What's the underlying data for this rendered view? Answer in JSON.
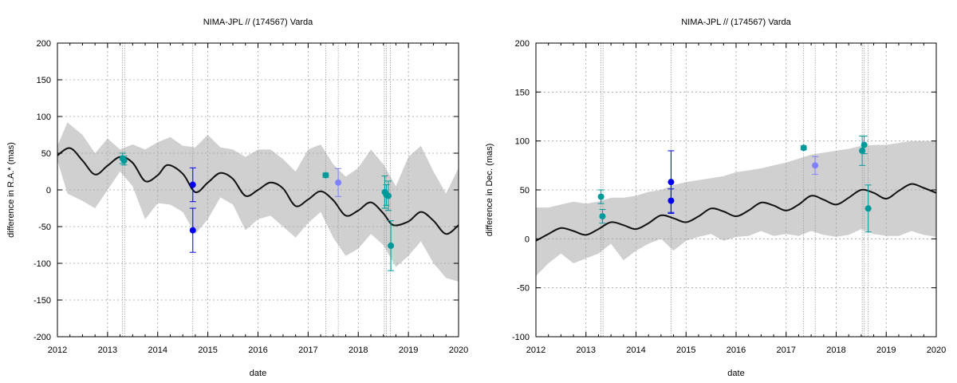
{
  "chart_data": [
    {
      "type": "scatter",
      "title": "NIMA-JPL // (174567) Varda",
      "xlabel": "date",
      "ylabel": "difference in R.A.* (mas)",
      "xlim": [
        2012,
        2020
      ],
      "ylim": [
        -200,
        200
      ],
      "x_ticks": [
        "2012",
        "2013",
        "2014",
        "2015",
        "2016",
        "2017",
        "2018",
        "2019",
        "2020"
      ],
      "y_ticks": [
        "-200",
        "-150",
        "-100",
        "-50",
        "0",
        "50",
        "100",
        "150",
        "200"
      ],
      "grid": true,
      "model_curve": [
        [
          2012.0,
          47
        ],
        [
          2012.25,
          57
        ],
        [
          2012.5,
          40
        ],
        [
          2012.75,
          21
        ],
        [
          2013.0,
          33
        ],
        [
          2013.25,
          45
        ],
        [
          2013.5,
          37
        ],
        [
          2013.75,
          12
        ],
        [
          2014.0,
          20
        ],
        [
          2014.2,
          34
        ],
        [
          2014.5,
          22
        ],
        [
          2014.75,
          -3
        ],
        [
          2015.0,
          10
        ],
        [
          2015.25,
          23
        ],
        [
          2015.5,
          15
        ],
        [
          2015.75,
          -8
        ],
        [
          2016.0,
          0
        ],
        [
          2016.25,
          10
        ],
        [
          2016.5,
          2
        ],
        [
          2016.75,
          -22
        ],
        [
          2017.0,
          -13
        ],
        [
          2017.25,
          -2
        ],
        [
          2017.5,
          -14
        ],
        [
          2017.75,
          -35
        ],
        [
          2018.0,
          -28
        ],
        [
          2018.25,
          -17
        ],
        [
          2018.5,
          -32
        ],
        [
          2018.7,
          -48
        ],
        [
          2019.0,
          -43
        ],
        [
          2019.25,
          -30
        ],
        [
          2019.5,
          -42
        ],
        [
          2019.75,
          -60
        ],
        [
          2020.0,
          -48
        ]
      ],
      "uncertainty_band": [
        [
          2012.0,
          40,
          60
        ],
        [
          2012.2,
          -5,
          92
        ],
        [
          2012.5,
          -15,
          75
        ],
        [
          2012.75,
          -25,
          50
        ],
        [
          2013.0,
          0,
          70
        ],
        [
          2013.25,
          25,
          55
        ],
        [
          2013.5,
          5,
          62
        ],
        [
          2013.75,
          -40,
          55
        ],
        [
          2014.0,
          -18,
          65
        ],
        [
          2014.25,
          -20,
          72
        ],
        [
          2014.5,
          -30,
          60
        ],
        [
          2014.75,
          -60,
          58
        ],
        [
          2015.0,
          -40,
          75
        ],
        [
          2015.25,
          -10,
          58
        ],
        [
          2015.5,
          -20,
          55
        ],
        [
          2015.75,
          -55,
          45
        ],
        [
          2016.0,
          -40,
          55
        ],
        [
          2016.25,
          -35,
          55
        ],
        [
          2016.5,
          -50,
          42
        ],
        [
          2016.75,
          -65,
          25
        ],
        [
          2017.0,
          -45,
          55
        ],
        [
          2017.25,
          -30,
          62
        ],
        [
          2017.5,
          -65,
          35
        ],
        [
          2017.75,
          -90,
          18
        ],
        [
          2018.0,
          -80,
          30
        ],
        [
          2018.25,
          -60,
          55
        ],
        [
          2018.5,
          -75,
          35
        ],
        [
          2018.75,
          -105,
          5
        ],
        [
          2019.0,
          -90,
          45
        ],
        [
          2019.25,
          -70,
          60
        ],
        [
          2019.5,
          -100,
          25
        ],
        [
          2019.75,
          -120,
          -5
        ],
        [
          2020.0,
          -125,
          30
        ]
      ],
      "series": [
        {
          "color": "#009999",
          "points": [
            {
              "x": 2013.3,
              "y": 43,
              "err": 7
            },
            {
              "x": 2013.33,
              "y": 40,
              "err": 6
            },
            {
              "x": 2017.35,
              "y": 20,
              "err": 3
            },
            {
              "x": 2018.53,
              "y": -3,
              "err": 22
            },
            {
              "x": 2018.56,
              "y": -7,
              "err": 14
            },
            {
              "x": 2018.6,
              "y": -8,
              "err": 20
            },
            {
              "x": 2018.65,
              "y": -76,
              "err": 34
            }
          ]
        },
        {
          "color": "#0000ee",
          "points": [
            {
              "x": 2014.7,
              "y": 7,
              "err": 23
            },
            {
              "x": 2014.7,
              "y": -55,
              "err": 30
            }
          ]
        },
        {
          "color": "#8080ff",
          "points": [
            {
              "x": 2017.6,
              "y": 10,
              "err": 19
            }
          ]
        }
      ],
      "vlines": [
        2013.3,
        2013.34,
        2014.7,
        2017.35,
        2017.6,
        2018.52,
        2018.56,
        2018.64
      ]
    },
    {
      "type": "scatter",
      "title": "NIMA-JPL // (174567) Varda",
      "xlabel": "date",
      "ylabel": "difference in Dec. (mas)",
      "xlim": [
        2012,
        2020
      ],
      "ylim": [
        -100,
        200
      ],
      "x_ticks": [
        "2012",
        "2013",
        "2014",
        "2015",
        "2016",
        "2017",
        "2018",
        "2019",
        "2020"
      ],
      "y_ticks": [
        "-100",
        "-50",
        "0",
        "50",
        "100",
        "150",
        "200"
      ],
      "grid": true,
      "model_curve": [
        [
          2012.0,
          -2
        ],
        [
          2012.25,
          5
        ],
        [
          2012.5,
          11
        ],
        [
          2012.75,
          8
        ],
        [
          2013.0,
          4
        ],
        [
          2013.25,
          10
        ],
        [
          2013.5,
          17
        ],
        [
          2013.75,
          14
        ],
        [
          2014.0,
          10
        ],
        [
          2014.25,
          16
        ],
        [
          2014.5,
          24
        ],
        [
          2014.75,
          21
        ],
        [
          2015.0,
          17
        ],
        [
          2015.25,
          23
        ],
        [
          2015.5,
          31
        ],
        [
          2015.75,
          28
        ],
        [
          2016.0,
          23
        ],
        [
          2016.25,
          29
        ],
        [
          2016.5,
          37
        ],
        [
          2016.75,
          34
        ],
        [
          2017.0,
          29
        ],
        [
          2017.25,
          35
        ],
        [
          2017.5,
          44
        ],
        [
          2017.75,
          40
        ],
        [
          2018.0,
          35
        ],
        [
          2018.25,
          42
        ],
        [
          2018.5,
          50
        ],
        [
          2018.75,
          47
        ],
        [
          2019.0,
          41
        ],
        [
          2019.25,
          49
        ],
        [
          2019.5,
          56
        ],
        [
          2019.75,
          52
        ],
        [
          2020.0,
          47
        ]
      ],
      "uncertainty_band": [
        [
          2012.0,
          -38,
          32
        ],
        [
          2012.25,
          -25,
          32
        ],
        [
          2012.5,
          -15,
          35
        ],
        [
          2012.75,
          -25,
          38
        ],
        [
          2013.0,
          -20,
          36
        ],
        [
          2013.25,
          -15,
          38
        ],
        [
          2013.5,
          -5,
          42
        ],
        [
          2013.75,
          -22,
          42
        ],
        [
          2014.0,
          -12,
          44
        ],
        [
          2014.25,
          -5,
          48
        ],
        [
          2014.5,
          0,
          50
        ],
        [
          2014.75,
          -12,
          55
        ],
        [
          2015.0,
          -2,
          58
        ],
        [
          2015.25,
          2,
          60
        ],
        [
          2015.5,
          5,
          62
        ],
        [
          2015.75,
          -2,
          64
        ],
        [
          2016.0,
          2,
          68
        ],
        [
          2016.25,
          3,
          70
        ],
        [
          2016.5,
          8,
          72
        ],
        [
          2016.75,
          3,
          75
        ],
        [
          2017.0,
          5,
          78
        ],
        [
          2017.25,
          3,
          82
        ],
        [
          2017.5,
          8,
          86
        ],
        [
          2017.75,
          4,
          88
        ],
        [
          2018.0,
          2,
          90
        ],
        [
          2018.25,
          4,
          92
        ],
        [
          2018.5,
          10,
          95
        ],
        [
          2018.75,
          5,
          96
        ],
        [
          2019.0,
          3,
          96
        ],
        [
          2019.25,
          3,
          98
        ],
        [
          2019.5,
          8,
          100
        ],
        [
          2019.75,
          4,
          100
        ],
        [
          2020.0,
          2,
          100
        ]
      ],
      "series": [
        {
          "color": "#009999",
          "points": [
            {
              "x": 2013.3,
              "y": 43,
              "err": 7
            },
            {
              "x": 2013.33,
              "y": 23,
              "err": 7
            },
            {
              "x": 2017.35,
              "y": 93,
              "err": 2
            },
            {
              "x": 2018.52,
              "y": 90,
              "err": 15
            },
            {
              "x": 2018.56,
              "y": 96,
              "err": 9
            },
            {
              "x": 2018.64,
              "y": 31,
              "err": 24
            }
          ]
        },
        {
          "color": "#0000ee",
          "points": [
            {
              "x": 2014.7,
              "y": 58,
              "err": 32
            },
            {
              "x": 2014.7,
              "y": 39,
              "err": 12
            }
          ]
        },
        {
          "color": "#8080ff",
          "points": [
            {
              "x": 2017.58,
              "y": 75,
              "err": 9
            }
          ]
        }
      ],
      "vlines": [
        2013.3,
        2013.34,
        2014.7,
        2017.35,
        2017.58,
        2018.52,
        2018.56,
        2018.64
      ]
    }
  ]
}
